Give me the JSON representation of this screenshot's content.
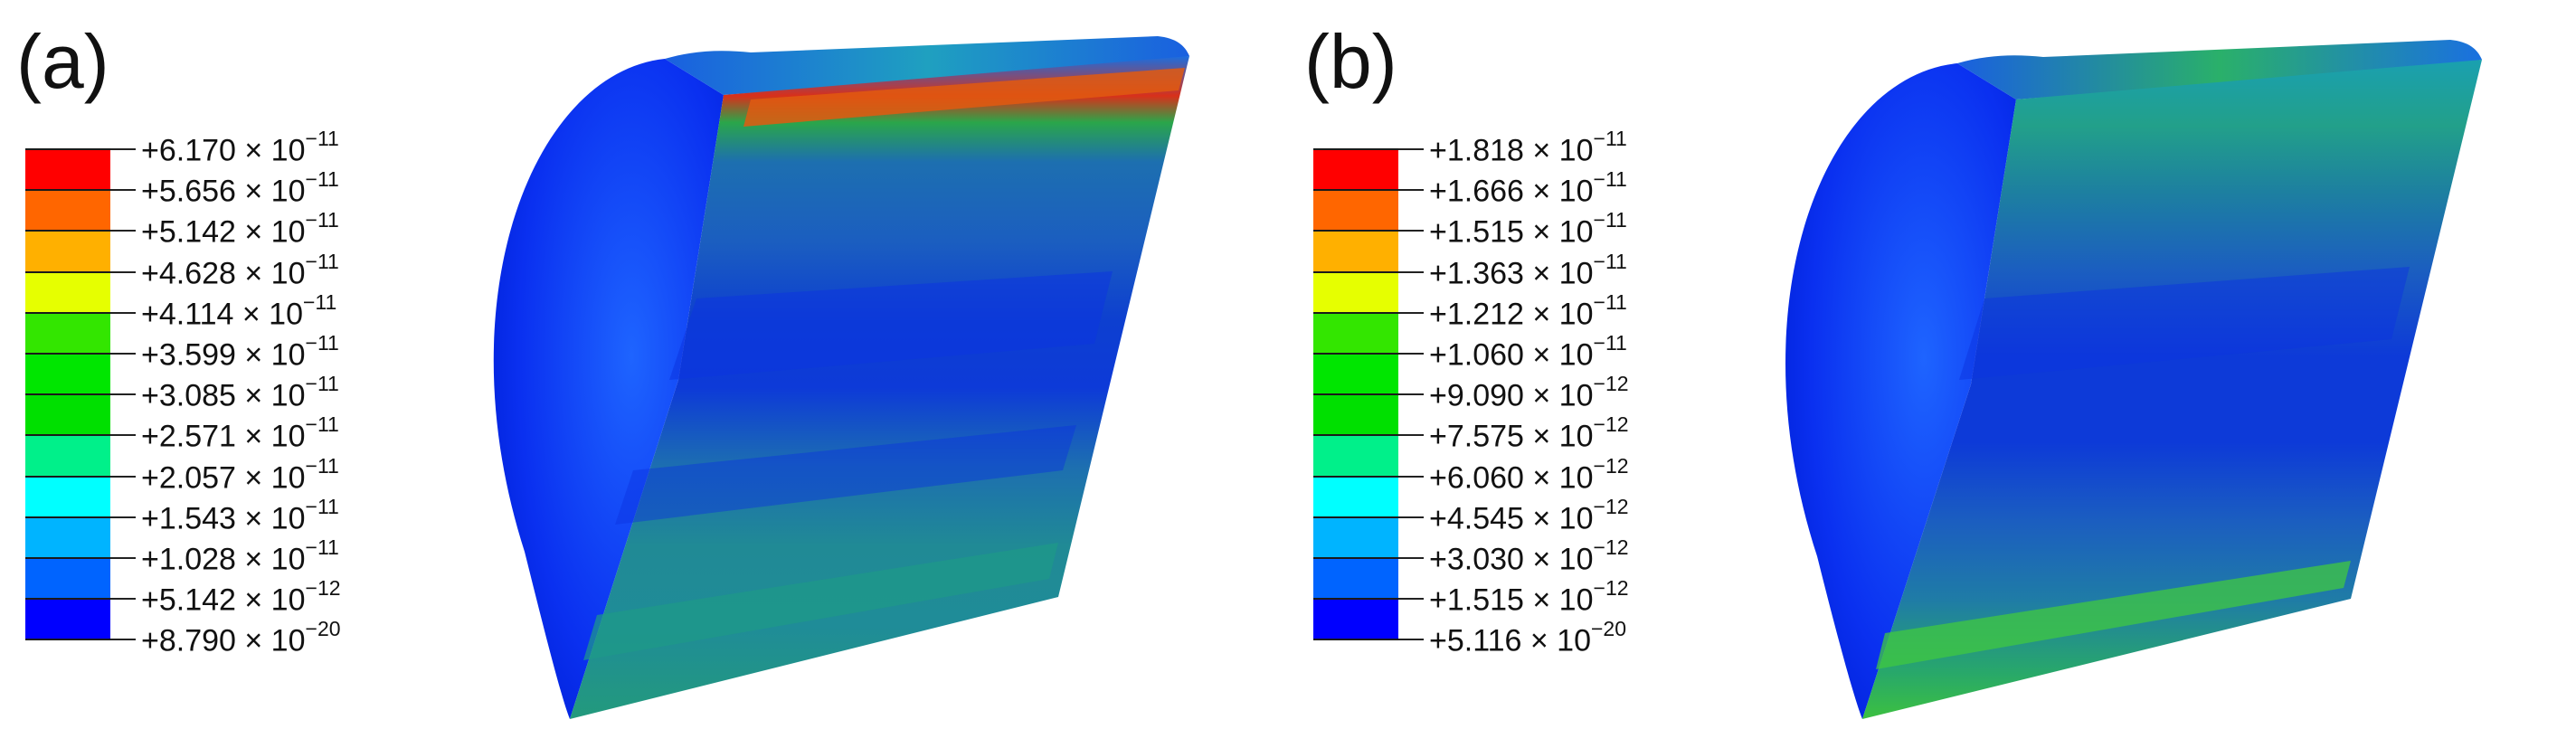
{
  "panels": [
    {
      "id": "a",
      "label": "(a)",
      "legend": {
        "values": [
          {
            "mant": "+6.170 × 10",
            "exp": "−11"
          },
          {
            "mant": "+5.656 × 10",
            "exp": "−11"
          },
          {
            "mant": "+5.142 × 10",
            "exp": "−11"
          },
          {
            "mant": "+4.628 × 10",
            "exp": "−11"
          },
          {
            "mant": "+4.114 × 10",
            "exp": "−11"
          },
          {
            "mant": "+3.599 × 10",
            "exp": "−11"
          },
          {
            "mant": "+3.085 × 10",
            "exp": "−11"
          },
          {
            "mant": "+2.571 × 10",
            "exp": "−11"
          },
          {
            "mant": "+2.057 × 10",
            "exp": "−11"
          },
          {
            "mant": "+1.543 × 10",
            "exp": "−11"
          },
          {
            "mant": "+1.028 × 10",
            "exp": "−11"
          },
          {
            "mant": "+5.142 × 10",
            "exp": "−12"
          },
          {
            "mant": "+8.790 × 10",
            "exp": "−20"
          }
        ]
      }
    },
    {
      "id": "b",
      "label": "(b)",
      "legend": {
        "values": [
          {
            "mant": "+1.818 × 10",
            "exp": "−11"
          },
          {
            "mant": "+1.666 × 10",
            "exp": "−11"
          },
          {
            "mant": "+1.515 × 10",
            "exp": "−11"
          },
          {
            "mant": "+1.363 × 10",
            "exp": "−11"
          },
          {
            "mant": "+1.212 × 10",
            "exp": "−11"
          },
          {
            "mant": "+1.060 × 10",
            "exp": "−11"
          },
          {
            "mant": "+9.090 × 10",
            "exp": "−12"
          },
          {
            "mant": "+7.575 × 10",
            "exp": "−12"
          },
          {
            "mant": "+6.060 × 10",
            "exp": "−12"
          },
          {
            "mant": "+4.545 × 10",
            "exp": "−12"
          },
          {
            "mant": "+3.030 × 10",
            "exp": "−12"
          },
          {
            "mant": "+1.515 × 10",
            "exp": "−12"
          },
          {
            "mant": "+5.116 × 10",
            "exp": "−20"
          }
        ]
      }
    }
  ],
  "colormap": [
    "#ff0000",
    "#ff6600",
    "#ffb000",
    "#e6ff00",
    "#33e600",
    "#00e600",
    "#00e000",
    "#00f08a",
    "#00ffff",
    "#00b4ff",
    "#0064ff",
    "#0000ff"
  ]
}
